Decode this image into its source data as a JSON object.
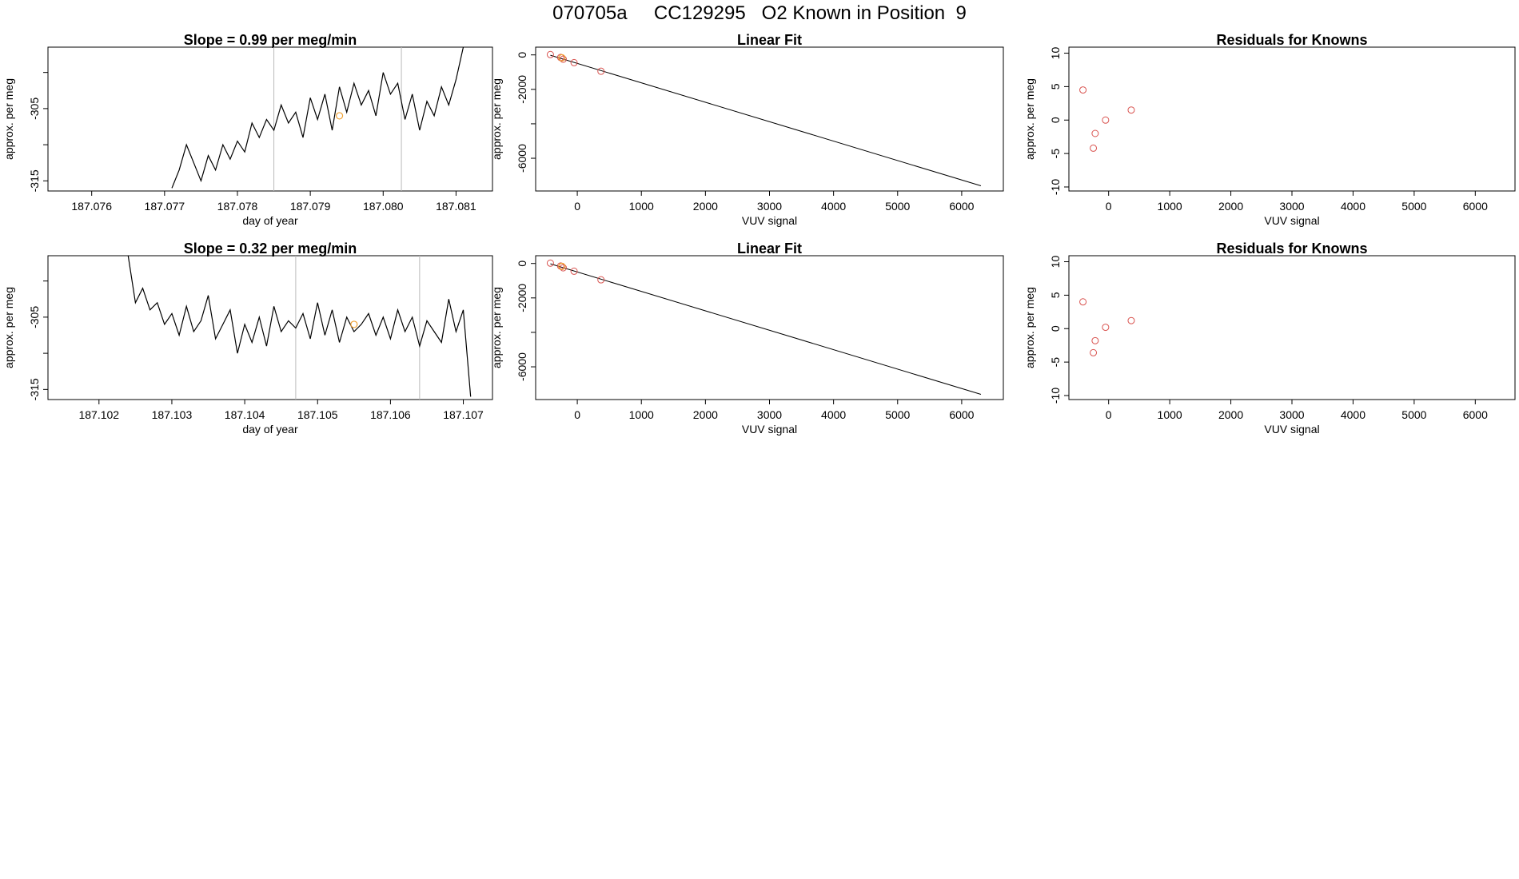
{
  "page_title": "070705a     CC129295   O2 Known in Position  9",
  "colors": {
    "axes": "#000000",
    "series": "#000000",
    "point_red": "#d9534f",
    "point_orange": "#f0a030",
    "vline": "#bbbbbb"
  },
  "chart_data": [
    {
      "name": "slope-1",
      "type": "line",
      "title": "Slope =  0.99  per meg/min",
      "xlabel": "day of year",
      "ylabel": "approx. per meg",
      "xlim": [
        187.0754,
        187.0815
      ],
      "ylim": [
        -316.4,
        -296.5
      ],
      "xticks": [
        187.076,
        187.077,
        187.078,
        187.079,
        187.08,
        187.081
      ],
      "xtick_labels": [
        "187.076",
        "187.077",
        "187.078",
        "187.079",
        "187.080",
        "187.081"
      ],
      "yticks": [
        -315,
        -310,
        -305,
        -300
      ],
      "ytick_labels": [
        "-315",
        "",
        "-305",
        ""
      ],
      "vlines": [
        187.0785,
        187.08025
      ],
      "highlight_point": {
        "x": 187.0794,
        "y": -306
      },
      "series_x": [
        187.0771,
        187.0772,
        187.0773,
        187.0774,
        187.0775,
        187.0776,
        187.0777,
        187.0778,
        187.0779,
        187.078,
        187.0781,
        187.0782,
        187.0783,
        187.0784,
        187.0785,
        187.0786,
        187.0787,
        187.0788,
        187.0789,
        187.079,
        187.0791,
        187.0792,
        187.0793,
        187.0794,
        187.0795,
        187.0796,
        187.0797,
        187.0798,
        187.0799,
        187.08,
        187.0801,
        187.0802,
        187.0803,
        187.0804,
        187.0805,
        187.0806,
        187.0807,
        187.0808,
        187.0809,
        187.081,
        187.0811
      ],
      "series_y": [
        -316,
        -313.5,
        -310,
        -312.5,
        -315,
        -311.5,
        -313.5,
        -310,
        -312,
        -309.5,
        -311,
        -307,
        -309,
        -306.5,
        -308,
        -304.5,
        -307,
        -305.5,
        -309,
        -303.5,
        -306.5,
        -303,
        -308,
        -302,
        -305.5,
        -301.5,
        -304.5,
        -302.5,
        -306,
        -300,
        -303,
        -301.5,
        -306.5,
        -303,
        -308,
        -304,
        -306,
        -302,
        -304.5,
        -301,
        -296.5
      ]
    },
    {
      "name": "linear-fit-1",
      "type": "scatter",
      "title": "Linear Fit",
      "xlabel": "VUV signal",
      "ylabel": "approx. per meg",
      "xlim": [
        -650,
        6650
      ],
      "ylim": [
        -7900,
        450
      ],
      "xticks": [
        0,
        1000,
        2000,
        3000,
        4000,
        5000,
        6000
      ],
      "xtick_labels": [
        "0",
        "1000",
        "2000",
        "3000",
        "4000",
        "5000",
        "6000"
      ],
      "yticks": [
        0,
        -2000,
        -4000,
        -6000
      ],
      "ytick_labels": [
        "0",
        "-2000",
        "",
        "-6000"
      ],
      "fit_line": {
        "x": [
          -420,
          6300
        ],
        "y": [
          -20,
          -7600
        ]
      },
      "points": {
        "x": [
          -420,
          -260,
          -220,
          -50,
          370
        ],
        "y": [
          20,
          -150,
          -250,
          -450,
          -950
        ]
      },
      "highlight_point": {
        "x": -240,
        "y": -170
      }
    },
    {
      "name": "residuals-1",
      "type": "scatter",
      "title": "Residuals for Knowns",
      "xlabel": "VUV signal",
      "ylabel": "approx. per meg",
      "xlim": [
        -650,
        6650
      ],
      "ylim": [
        -10.6,
        10.9
      ],
      "xticks": [
        0,
        1000,
        2000,
        3000,
        4000,
        5000,
        6000
      ],
      "xtick_labels": [
        "0",
        "1000",
        "2000",
        "3000",
        "4000",
        "5000",
        "6000"
      ],
      "yticks": [
        10,
        5,
        0,
        -5,
        -10
      ],
      "ytick_labels": [
        "10",
        "5",
        "0",
        "-5",
        "-10"
      ],
      "points": {
        "x": [
          -420,
          -220,
          -250,
          -50,
          370
        ],
        "y": [
          4.5,
          -2,
          -4.2,
          0,
          1.5
        ]
      }
    },
    {
      "name": "slope-2",
      "type": "line",
      "title": "Slope =  0.32  per meg/min",
      "xlabel": "day of year",
      "ylabel": "approx. per meg",
      "xlim": [
        187.1013,
        187.1074
      ],
      "ylim": [
        -316.4,
        -296.5
      ],
      "xticks": [
        187.102,
        187.103,
        187.104,
        187.105,
        187.106,
        187.107
      ],
      "xtick_labels": [
        "187.102",
        "187.103",
        "187.104",
        "187.105",
        "187.106",
        "187.107"
      ],
      "yticks": [
        -315,
        -310,
        -305,
        -300
      ],
      "ytick_labels": [
        "-315",
        "",
        "-305",
        ""
      ],
      "vlines": [
        187.1047,
        187.1064
      ],
      "highlight_point": {
        "x": 187.1055,
        "y": -306
      },
      "series_x": [
        187.1024,
        187.1025,
        187.1026,
        187.1027,
        187.1028,
        187.1029,
        187.103,
        187.1031,
        187.1032,
        187.1033,
        187.1034,
        187.1035,
        187.1036,
        187.1037,
        187.1038,
        187.1039,
        187.104,
        187.1041,
        187.1042,
        187.1043,
        187.1044,
        187.1045,
        187.1046,
        187.1047,
        187.1048,
        187.1049,
        187.105,
        187.1051,
        187.1052,
        187.1053,
        187.1054,
        187.1055,
        187.1056,
        187.1057,
        187.1058,
        187.1059,
        187.106,
        187.1061,
        187.1062,
        187.1063,
        187.1064,
        187.1065,
        187.1066,
        187.1067,
        187.1068,
        187.1069,
        187.107,
        187.1071
      ],
      "series_y": [
        -296.5,
        -303,
        -301,
        -304,
        -303,
        -306,
        -304.5,
        -307.5,
        -303.5,
        -307,
        -305.5,
        -302,
        -308,
        -306,
        -304,
        -310,
        -306,
        -308.5,
        -305,
        -309,
        -303.5,
        -307,
        -305.5,
        -306.5,
        -304.5,
        -308,
        -303,
        -307.5,
        -304,
        -308.5,
        -305,
        -307,
        -306,
        -304.5,
        -307.5,
        -305,
        -308,
        -304,
        -307,
        -305,
        -309,
        -305.5,
        -307,
        -308.5,
        -302.5,
        -307,
        -304,
        -316
      ]
    },
    {
      "name": "linear-fit-2",
      "type": "scatter",
      "title": "Linear Fit",
      "xlabel": "VUV signal",
      "ylabel": "approx. per meg",
      "xlim": [
        -650,
        6650
      ],
      "ylim": [
        -7900,
        450
      ],
      "xticks": [
        0,
        1000,
        2000,
        3000,
        4000,
        5000,
        6000
      ],
      "xtick_labels": [
        "0",
        "1000",
        "2000",
        "3000",
        "4000",
        "5000",
        "6000"
      ],
      "yticks": [
        0,
        -2000,
        -4000,
        -6000
      ],
      "ytick_labels": [
        "0",
        "-2000",
        "",
        "-6000"
      ],
      "fit_line": {
        "x": [
          -420,
          6300
        ],
        "y": [
          -20,
          -7600
        ]
      },
      "points": {
        "x": [
          -420,
          -260,
          -220,
          -50,
          370
        ],
        "y": [
          20,
          -150,
          -250,
          -450,
          -950
        ]
      },
      "highlight_point": {
        "x": -240,
        "y": -170
      }
    },
    {
      "name": "residuals-2",
      "type": "scatter",
      "title": "Residuals for Knowns",
      "xlabel": "VUV signal",
      "ylabel": "approx. per meg",
      "xlim": [
        -650,
        6650
      ],
      "ylim": [
        -10.6,
        10.9
      ],
      "xticks": [
        0,
        1000,
        2000,
        3000,
        4000,
        5000,
        6000
      ],
      "xtick_labels": [
        "0",
        "1000",
        "2000",
        "3000",
        "4000",
        "5000",
        "6000"
      ],
      "yticks": [
        10,
        5,
        0,
        -5,
        -10
      ],
      "ytick_labels": [
        "10",
        "5",
        "0",
        "-5",
        "-10"
      ],
      "points": {
        "x": [
          -420,
          -220,
          -250,
          -50,
          370
        ],
        "y": [
          4,
          -1.8,
          -3.6,
          0.2,
          1.2
        ]
      }
    }
  ]
}
